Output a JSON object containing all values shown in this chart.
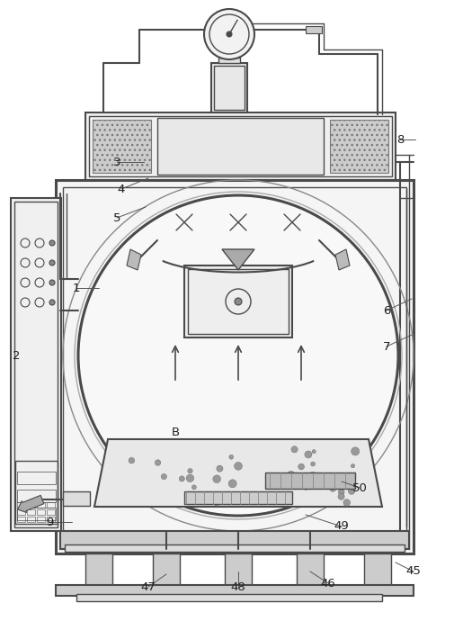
{
  "bg_color": "#ffffff",
  "line_color": "#4a4a4a",
  "label_color": "#222222",
  "fig_width": 5.06,
  "fig_height": 6.9,
  "dpi": 100
}
